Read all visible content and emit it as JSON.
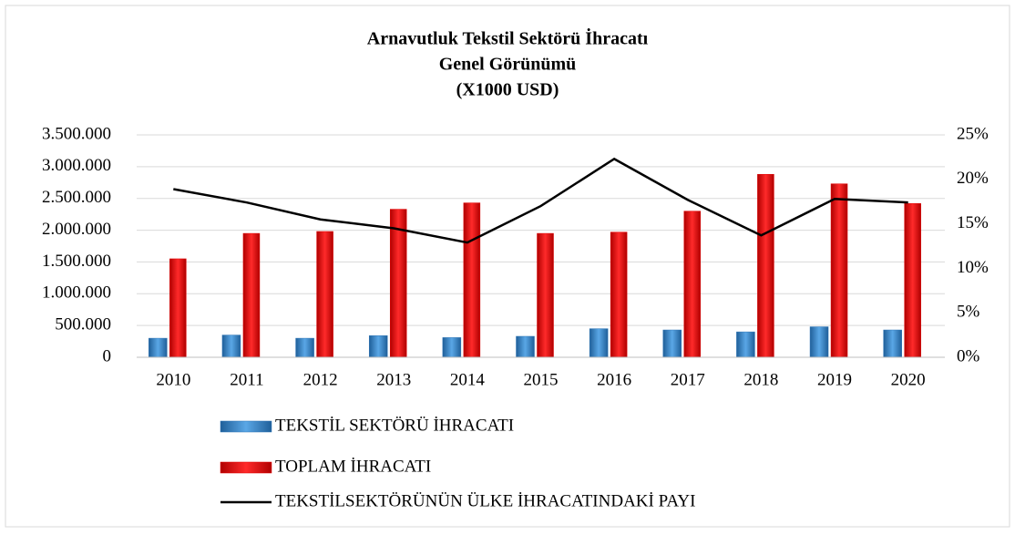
{
  "chart_data": {
    "type": "bar_line",
    "title": [
      "Arnavutluk Tekstil Sektörü İhracatı",
      "Genel Görünümü",
      "(X1000 USD)"
    ],
    "categories": [
      "2010",
      "2011",
      "2012",
      "2013",
      "2014",
      "2015",
      "2016",
      "2017",
      "2018",
      "2019",
      "2020"
    ],
    "series": [
      {
        "name": "TEKSTİL SEKTÖRÜ İHRACATI",
        "type": "bar",
        "color": "#2e75b6",
        "values": [
          300000,
          350000,
          300000,
          340000,
          310000,
          330000,
          450000,
          430000,
          400000,
          480000,
          430000
        ]
      },
      {
        "name": "TOPLAM İHRACATI",
        "type": "bar",
        "color": "#e00000",
        "values": [
          1550000,
          1950000,
          1980000,
          2330000,
          2430000,
          1950000,
          1970000,
          2300000,
          2880000,
          2730000,
          2420000
        ]
      },
      {
        "name": "TEKSTİLSEKTÖRÜNÜN ÜLKE İHRACATINDAKİ PAYI",
        "type": "line",
        "color": "#000000",
        "axis": "y2",
        "values": [
          18.9,
          17.4,
          15.5,
          14.5,
          12.9,
          17.0,
          22.3,
          17.7,
          13.7,
          17.8,
          17.4
        ]
      }
    ],
    "ylim": [
      0,
      3500000
    ],
    "yticks": [
      0,
      {
        "value": 500000,
        "label": "500.000"
      },
      {
        "value": 1000000,
        "label": "1.000.000"
      },
      {
        "value": 1500000,
        "label": "1.500.000"
      },
      {
        "value": 2000000,
        "label": "2.000.000"
      },
      {
        "value": 2500000,
        "label": "2.500.000"
      },
      {
        "value": 3000000,
        "label": "3.000.000"
      },
      {
        "value": 3500000,
        "label": "3.500.000"
      }
    ],
    "y2lim": [
      0,
      25
    ],
    "y2ticks": [
      {
        "value": 0,
        "label": "0%"
      },
      {
        "value": 5,
        "label": "5%"
      },
      {
        "value": 10,
        "label": "10%"
      },
      {
        "value": 15,
        "label": "15%"
      },
      {
        "value": 20,
        "label": "20%"
      },
      {
        "value": 25,
        "label": "25%"
      }
    ],
    "grid": true
  }
}
